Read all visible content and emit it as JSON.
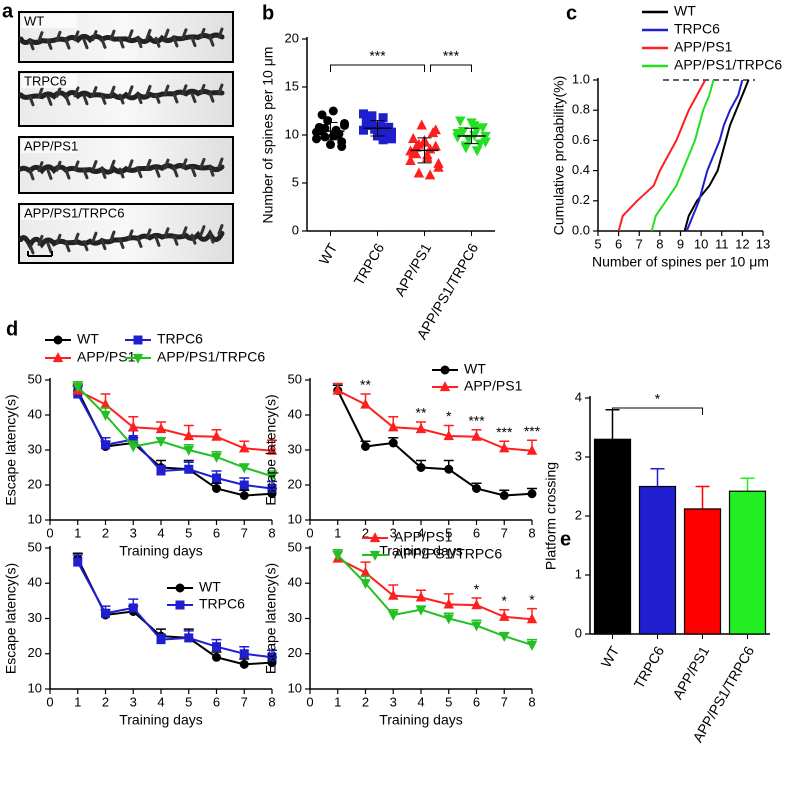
{
  "chart_data": [
    {
      "type": "image",
      "label": "a",
      "panels": [
        "WT",
        "TRPC6",
        "APP/PS1",
        "APP/PS1/TRPC6"
      ]
    },
    {
      "type": "dotplot",
      "label": "b",
      "ylabel": "Number of spines per 10 μm",
      "categories": [
        "WT",
        "TRPC6",
        "APP/PS1",
        "APP/PS1/TRPC6"
      ],
      "colors": [
        "#000000",
        "#1f1fd0",
        "#ff1f1f",
        "#22e022"
      ],
      "markers": [
        "circle",
        "square",
        "triangle",
        "triangle-down"
      ],
      "values": [
        [
          10.3,
          10.5,
          9.8,
          11.2,
          12.5,
          12.1,
          9.3,
          9.0,
          10.8,
          10.1,
          11.5,
          9.6,
          10.0,
          10.7,
          11.0,
          9.9,
          10.4,
          8.8
        ],
        [
          10.5,
          11.8,
          12.0,
          9.6,
          10.2,
          11.0,
          10.8,
          9.9,
          11.4,
          10.0,
          10.6,
          12.2,
          9.5,
          11.2,
          10.3,
          10.9
        ],
        [
          8.3,
          5.8,
          6.0,
          7.0,
          7.6,
          8.0,
          8.8,
          9.2,
          9.6,
          10.2,
          11.0,
          7.3,
          8.5,
          9.0,
          6.6,
          7.9,
          8.7,
          10.5,
          9.4,
          8.1
        ],
        [
          9.8,
          8.4,
          8.9,
          9.3,
          10.0,
          10.4,
          10.8,
          11.3,
          11.5,
          9.1,
          9.6,
          10.2,
          10.6,
          8.7,
          9.9,
          11.0
        ]
      ],
      "means": [
        10.4,
        10.7,
        8.4,
        9.9
      ],
      "sds": [
        0.9,
        0.8,
        1.3,
        0.8
      ],
      "ylim": [
        0,
        20
      ],
      "yticks": [
        0,
        5,
        10,
        15,
        20
      ],
      "annotations": [
        {
          "between": [
            0,
            2
          ],
          "text": "***"
        },
        {
          "between": [
            2,
            3
          ],
          "text": "***"
        }
      ]
    },
    {
      "type": "line",
      "label": "c",
      "ylabel": "Cumulative probability(%)",
      "xlabel": "Number of spines per 10 μm",
      "xlim": [
        5,
        13
      ],
      "xticks": [
        5,
        6,
        7,
        8,
        9,
        10,
        11,
        12,
        13
      ],
      "ylim": [
        0,
        1
      ],
      "yticks": [
        {
          "value": 0,
          "label": "0.0"
        },
        {
          "value": 0.2,
          "label": "0.2"
        },
        {
          "value": 0.4,
          "label": "0.4"
        },
        {
          "value": 0.6,
          "label": "0.6"
        },
        {
          "value": 0.8,
          "label": "0.8"
        },
        {
          "value": 1,
          "label": "1.0"
        }
      ],
      "legend": "top-outside-right",
      "series": [
        {
          "name": "WT",
          "color": "#000000",
          "x": [
            9.2,
            9.4,
            9.8,
            10.4,
            10.8,
            11.0,
            11.2,
            11.4,
            11.7,
            12.0,
            12.3
          ],
          "values": [
            0,
            0.1,
            0.2,
            0.3,
            0.4,
            0.5,
            0.6,
            0.7,
            0.8,
            0.9,
            1.0
          ]
        },
        {
          "name": "TRPC6",
          "color": "#1f1fd0",
          "x": [
            9.3,
            9.6,
            9.9,
            10.1,
            10.3,
            10.6,
            10.9,
            11.1,
            11.4,
            11.8,
            12.0
          ],
          "values": [
            0,
            0.1,
            0.2,
            0.3,
            0.4,
            0.5,
            0.6,
            0.7,
            0.8,
            0.9,
            1.0
          ]
        },
        {
          "name": "APP/PS1",
          "color": "#ff1f1f",
          "x": [
            6.0,
            6.2,
            6.9,
            7.7,
            8.0,
            8.4,
            8.8,
            9.1,
            9.4,
            9.8,
            10.2
          ],
          "values": [
            0,
            0.1,
            0.2,
            0.3,
            0.4,
            0.5,
            0.6,
            0.7,
            0.8,
            0.9,
            1.0
          ]
        },
        {
          "name": "APP/PS1/TRPC6",
          "color": "#22e022",
          "x": [
            7.6,
            7.8,
            8.3,
            8.8,
            9.1,
            9.4,
            9.7,
            9.9,
            10.1,
            10.4,
            10.6
          ],
          "values": [
            0,
            0.1,
            0.2,
            0.3,
            0.4,
            0.5,
            0.6,
            0.7,
            0.8,
            0.9,
            1.0
          ]
        }
      ]
    },
    {
      "type": "errorline",
      "label": "d",
      "xlabel": "Training days",
      "ylabel": "Escape latency(s)",
      "x": [
        1,
        2,
        3,
        4,
        5,
        6,
        7,
        8
      ],
      "xlim": [
        0,
        8
      ],
      "xticks": [
        0,
        1,
        2,
        3,
        4,
        5,
        6,
        7,
        8
      ],
      "ylim": [
        10,
        50
      ],
      "yticks": [
        10,
        20,
        30,
        40,
        50
      ],
      "legend": "top-outside",
      "series": [
        {
          "name": "WT",
          "color": "#000000",
          "marker": "circle",
          "values": [
            47,
            31,
            32,
            25,
            24.5,
            19,
            17,
            17.5
          ],
          "errors": [
            1.5,
            1.5,
            1.5,
            2,
            2.5,
            1.5,
            1.5,
            1.5
          ]
        },
        {
          "name": "TRPC6",
          "color": "#1f1fd0",
          "marker": "square",
          "values": [
            46,
            31.5,
            33,
            24,
            24.5,
            22,
            20,
            19
          ],
          "errors": [
            2,
            2,
            2.5,
            1.5,
            2,
            2,
            2,
            2
          ]
        },
        {
          "name": "APP/PS1",
          "color": "#ff1f1f",
          "marker": "triangle",
          "values": [
            47,
            43,
            36.5,
            36,
            34,
            33.8,
            30.5,
            29.8
          ],
          "errors": [
            2,
            3,
            3,
            2,
            3,
            2,
            2,
            3
          ]
        },
        {
          "name": "APP/PS1/TRPC6",
          "color": "#22c022",
          "marker": "triangle-down",
          "values": [
            48,
            40,
            31,
            32.5,
            30,
            28,
            25,
            22.5
          ],
          "errors": [
            1.5,
            2,
            1.5,
            1,
            1.5,
            1.5,
            1,
            1.5
          ]
        }
      ]
    },
    {
      "type": "errorline",
      "xlabel": "Training days",
      "ylabel": "Escape latency(s)",
      "x": [
        1,
        2,
        3,
        4,
        5,
        6,
        7,
        8
      ],
      "xlim": [
        0,
        8
      ],
      "xticks": [
        0,
        1,
        2,
        3,
        4,
        5,
        6,
        7,
        8
      ],
      "ylim": [
        10,
        50
      ],
      "yticks": [
        10,
        20,
        30,
        40,
        50
      ],
      "legend": "upper right",
      "series": [
        {
          "name": "WT",
          "color": "#000000",
          "marker": "circle",
          "values": [
            47,
            31,
            32,
            25,
            24.5,
            19,
            17,
            17.5
          ],
          "errors": [
            1.5,
            1.5,
            1.5,
            2,
            2.5,
            1.5,
            1.5,
            1.5
          ]
        },
        {
          "name": "APP/PS1",
          "color": "#ff1f1f",
          "marker": "triangle",
          "values": [
            47,
            43,
            36.5,
            36,
            34,
            33.8,
            30.5,
            29.8
          ],
          "errors": [
            2,
            3,
            3,
            2,
            3,
            2,
            2,
            3
          ]
        }
      ],
      "annotations": [
        {
          "x": 2,
          "text": "**"
        },
        {
          "x": 4,
          "text": "**"
        },
        {
          "x": 5,
          "text": "*"
        },
        {
          "x": 6,
          "text": "***"
        },
        {
          "x": 7,
          "text": "***"
        },
        {
          "x": 8,
          "text": "***"
        }
      ]
    },
    {
      "type": "errorline",
      "xlabel": "Training days",
      "ylabel": "Escape latency(s)",
      "x": [
        1,
        2,
        3,
        4,
        5,
        6,
        7,
        8
      ],
      "xlim": [
        0,
        8
      ],
      "xticks": [
        0,
        1,
        2,
        3,
        4,
        5,
        6,
        7,
        8
      ],
      "ylim": [
        10,
        50
      ],
      "yticks": [
        10,
        20,
        30,
        40,
        50
      ],
      "legend": "center right",
      "series": [
        {
          "name": "WT",
          "color": "#000000",
          "marker": "circle",
          "values": [
            47,
            31,
            32,
            25,
            24.5,
            19,
            17,
            17.5
          ],
          "errors": [
            1.5,
            1.5,
            1.5,
            2,
            2.5,
            1.5,
            1.5,
            1.5
          ]
        },
        {
          "name": "TRPC6",
          "color": "#1f1fd0",
          "marker": "square",
          "values": [
            46,
            31.5,
            33,
            24,
            24.5,
            22,
            20,
            19
          ],
          "errors": [
            2,
            2,
            2.5,
            1.5,
            2,
            2,
            2,
            2
          ]
        }
      ]
    },
    {
      "type": "errorline",
      "xlabel": "Training days",
      "ylabel": "Escape latency(s)",
      "x": [
        1,
        2,
        3,
        4,
        5,
        6,
        7,
        8
      ],
      "xlim": [
        0,
        8
      ],
      "xticks": [
        0,
        1,
        2,
        3,
        4,
        5,
        6,
        7,
        8
      ],
      "ylim": [
        10,
        50
      ],
      "yticks": [
        10,
        20,
        30,
        40,
        50
      ],
      "legend": "upper right",
      "series": [
        {
          "name": "APP/PS1",
          "color": "#ff1f1f",
          "marker": "triangle",
          "values": [
            47,
            43,
            36.5,
            36,
            34,
            33.8,
            30.5,
            29.8
          ],
          "errors": [
            2,
            3,
            3,
            2,
            3,
            2,
            2,
            3
          ]
        },
        {
          "name": "APP/PS1/TRPC6",
          "color": "#22c022",
          "marker": "triangle-down",
          "values": [
            48,
            40,
            31,
            32.5,
            30,
            28,
            25,
            22.5
          ],
          "errors": [
            1.5,
            2,
            1.5,
            1,
            1.5,
            1.5,
            1,
            1.5
          ]
        }
      ],
      "annotations": [
        {
          "x": 6,
          "text": "*"
        },
        {
          "x": 7,
          "text": "*"
        },
        {
          "x": 8,
          "text": "*"
        }
      ]
    },
    {
      "type": "bar",
      "label": "e",
      "ylabel": "Platform crossing",
      "categories": [
        "WT",
        "TRPC6",
        "APP/PS1",
        "APP/PS1/TRPC6"
      ],
      "colors": [
        "#000000",
        "#1f1fd0",
        "#ff0000",
        "#22ee22"
      ],
      "values": [
        3.3,
        2.5,
        2.12,
        2.42
      ],
      "errors": [
        0.5,
        0.3,
        0.38,
        0.22
      ],
      "ylim": [
        0,
        4
      ],
      "yticks": [
        0,
        1,
        2,
        3,
        4
      ],
      "annotations": [
        {
          "between": [
            0,
            2
          ],
          "text": "*"
        }
      ]
    }
  ]
}
